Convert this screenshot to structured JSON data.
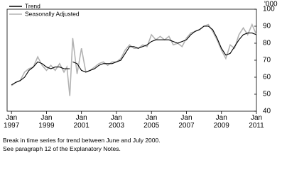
{
  "chart_data": {
    "type": "line",
    "unit_label": "'000",
    "x": [
      "1997-01",
      "1997-04",
      "1997-07",
      "1997-10",
      "1998-01",
      "1998-04",
      "1998-07",
      "1998-10",
      "1999-01",
      "1999-04",
      "1999-07",
      "1999-10",
      "2000-01",
      "2000-03",
      "2000-05",
      "2000-06",
      "2000-07",
      "2000-10",
      "2001-01",
      "2001-04",
      "2001-07",
      "2001-10",
      "2002-01",
      "2002-04",
      "2002-07",
      "2002-10",
      "2003-01",
      "2003-04",
      "2003-07",
      "2003-10",
      "2004-01",
      "2004-04",
      "2004-07",
      "2004-10",
      "2005-01",
      "2005-04",
      "2005-07",
      "2005-10",
      "2006-01",
      "2006-04",
      "2006-07",
      "2006-10",
      "2007-01",
      "2007-04",
      "2007-07",
      "2007-10",
      "2008-01",
      "2008-04",
      "2008-07",
      "2008-10",
      "2009-01",
      "2009-04",
      "2009-07",
      "2009-10",
      "2010-01",
      "2010-04",
      "2010-07",
      "2010-10",
      "2011-01"
    ],
    "series": [
      {
        "name": "Trend",
        "color": "#000000",
        "values": [
          55.5,
          57,
          58,
          60,
          64,
          66,
          69,
          68,
          66,
          65,
          66,
          66,
          65,
          65,
          65,
          null,
          69,
          68,
          64,
          63,
          64,
          65,
          67,
          68,
          68,
          68,
          69,
          70,
          74,
          78,
          78,
          77,
          78,
          79,
          81,
          82,
          82,
          82,
          82,
          81,
          80,
          81,
          82,
          85,
          87,
          88,
          90,
          90,
          88,
          83,
          77,
          73,
          74,
          78,
          82,
          85,
          86,
          86,
          85
        ]
      },
      {
        "name": "Seasonally Adjusted",
        "color": "#b3b3b3",
        "values": [
          55,
          57,
          58,
          63,
          65,
          66,
          72,
          67,
          64,
          67,
          64,
          68,
          63,
          66,
          49,
          66,
          83,
          62,
          77,
          63,
          64,
          66,
          68,
          69,
          67,
          69,
          69,
          71,
          76,
          79,
          77,
          77,
          79,
          78,
          85,
          82,
          84,
          82,
          84,
          79,
          80,
          78,
          83,
          86,
          87,
          88,
          90,
          91,
          87,
          82,
          76,
          71,
          79,
          77,
          85,
          89,
          85,
          91,
          85
        ]
      }
    ],
    "xlim": [
      "1996-10",
      "2011-01"
    ],
    "xticks": [
      {
        "value": "1997-01",
        "label": "Jan\n1997"
      },
      {
        "value": "1999-01",
        "label": "Jan\n1999"
      },
      {
        "value": "2001-01",
        "label": "Jan\n2001"
      },
      {
        "value": "2003-01",
        "label": "Jan\n2003"
      },
      {
        "value": "2005-01",
        "label": "Jan\n2005"
      },
      {
        "value": "2007-01",
        "label": "Jan\n2007"
      },
      {
        "value": "2009-01",
        "label": "Jan\n2009"
      },
      {
        "value": "2011-01",
        "label": "Jan\n2011"
      }
    ],
    "ylim": [
      40,
      100
    ],
    "yticks": [
      40,
      50,
      60,
      70,
      80,
      90,
      100
    ],
    "legend": "top-left",
    "notes": [
      "Break in time series for trend between June and July 2000.",
      "See paragraph 12 of the Explanatory Notes."
    ]
  }
}
